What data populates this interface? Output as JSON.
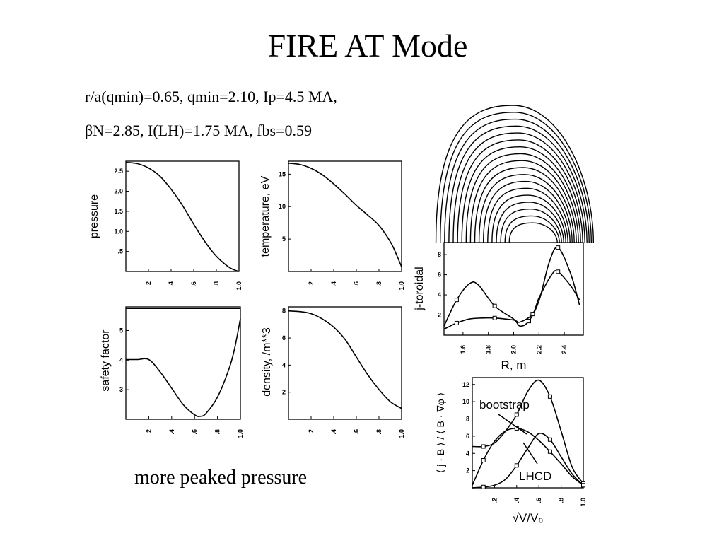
{
  "slide": {
    "title": "FIRE AT Mode",
    "params_line1": "r/a(qmin)=0.65, qmin=2.10, Ip=4.5 MA,",
    "params_line2": "βN=2.85, I(LH)=1.75 MA, fbs=0.59",
    "caption": "more peaked pressure"
  },
  "chart_data": [
    {
      "type": "line",
      "ylabel": "pressure",
      "x_ticks": [
        "2",
        ".4",
        ".6",
        ".8",
        "1.0"
      ],
      "y_ticks": [
        ".5",
        "1.0",
        "1.5",
        "2.0",
        "2.5"
      ],
      "xlim": [
        0,
        1
      ],
      "ylim": [
        0,
        2.75
      ],
      "series": [
        {
          "x": [
            0,
            0.1,
            0.2,
            0.3,
            0.4,
            0.5,
            0.6,
            0.7,
            0.8,
            0.9,
            0.95,
            1.0
          ],
          "y": [
            2.72,
            2.69,
            2.58,
            2.38,
            2.05,
            1.65,
            1.18,
            0.74,
            0.38,
            0.13,
            0.05,
            0.0
          ]
        }
      ]
    },
    {
      "type": "line",
      "ylabel": "temperature, eV",
      "x_ticks": [
        "2",
        ".4",
        ".6",
        ".8",
        "1.0"
      ],
      "y_ticks": [
        "5",
        "10",
        "15"
      ],
      "xlim": [
        0,
        1
      ],
      "ylim": [
        0,
        17
      ],
      "series": [
        {
          "x": [
            0,
            0.1,
            0.2,
            0.3,
            0.4,
            0.5,
            0.6,
            0.7,
            0.8,
            0.9,
            0.95,
            1.0
          ],
          "y": [
            16.7,
            16.5,
            15.9,
            14.9,
            13.5,
            11.9,
            10.2,
            8.7,
            7.1,
            4.6,
            2.8,
            0.7
          ]
        }
      ]
    },
    {
      "type": "line",
      "ylabel": "safety factor",
      "x_ticks": [
        "2",
        ".4",
        ".6",
        ".8",
        "1.0"
      ],
      "y_ticks": [
        "3",
        "4",
        "5"
      ],
      "xlim": [
        0,
        1
      ],
      "ylim": [
        2,
        5.8
      ],
      "series": [
        {
          "x": [
            0,
            0.1,
            0.2,
            0.3,
            0.4,
            0.5,
            0.6,
            0.65,
            0.7,
            0.8,
            0.9,
            0.95,
            1.0
          ],
          "y": [
            4.02,
            4.02,
            4.02,
            3.6,
            3.05,
            2.5,
            2.15,
            2.1,
            2.2,
            2.75,
            3.7,
            4.4,
            5.4
          ]
        }
      ]
    },
    {
      "type": "line",
      "ylabel": "density, /m**3",
      "x_ticks": [
        "2",
        ".4",
        ".6",
        ".8",
        "1.0"
      ],
      "y_ticks": [
        "2",
        "4",
        "6",
        "8"
      ],
      "xlim": [
        0,
        1
      ],
      "ylim": [
        0,
        8.3
      ],
      "series": [
        {
          "x": [
            0,
            0.1,
            0.2,
            0.3,
            0.4,
            0.5,
            0.6,
            0.7,
            0.8,
            0.9,
            1.0
          ],
          "y": [
            8.0,
            7.95,
            7.8,
            7.4,
            6.8,
            5.9,
            4.6,
            3.3,
            2.2,
            1.3,
            0.8
          ]
        }
      ]
    },
    {
      "type": "line",
      "xlabel": "R, m",
      "ylabel": "j-toroidal",
      "x_ticks": [
        "1.6",
        "1.8",
        "2.0",
        "2.2",
        "2.4"
      ],
      "y_ticks": [
        "2",
        "4",
        "6",
        "8"
      ],
      "xlim": [
        1.45,
        2.55
      ],
      "ylim": [
        0,
        9.2
      ],
      "series": [
        {
          "x": [
            1.45,
            1.55,
            1.65,
            1.72,
            1.85,
            2.0,
            2.05,
            2.12,
            2.2,
            2.28,
            2.35,
            2.45,
            2.52
          ],
          "y": [
            0.9,
            3.5,
            5.1,
            5.0,
            2.9,
            1.6,
            0.9,
            1.4,
            3.4,
            7.2,
            8.7,
            6.1,
            3.0
          ]
        },
        {
          "x": [
            1.45,
            1.55,
            1.65,
            1.75,
            1.85,
            2.0,
            2.05,
            2.15,
            2.2,
            2.3,
            2.35,
            2.45,
            2.52
          ],
          "y": [
            0.6,
            1.2,
            1.6,
            1.7,
            1.7,
            1.5,
            1.3,
            2.1,
            3.7,
            6.0,
            6.3,
            4.9,
            3.5
          ]
        }
      ]
    },
    {
      "type": "line",
      "xlabel": "√V/V₀",
      "ylabel": "⟨ j · B ⟩ / ⟨ B · ∇φ ⟩",
      "annotations": [
        "bootstrap",
        "LHCD"
      ],
      "x_ticks": [
        ".2",
        ".4",
        ".6",
        ".8",
        "1.0"
      ],
      "y_ticks": [
        "2",
        "4",
        "6",
        "8",
        "10",
        "12"
      ],
      "xlim": [
        0,
        1
      ],
      "ylim": [
        0,
        12.8
      ],
      "series": [
        {
          "x": [
            0,
            0.1,
            0.2,
            0.3,
            0.4,
            0.5,
            0.6,
            0.7,
            0.8,
            0.9,
            1.0
          ],
          "y": [
            4.8,
            4.8,
            5.2,
            6.6,
            8.5,
            11.2,
            12.5,
            10.6,
            6.6,
            2.4,
            0.5
          ]
        },
        {
          "x": [
            0,
            0.1,
            0.2,
            0.3,
            0.4,
            0.5,
            0.6,
            0.7,
            0.8,
            0.9,
            1.0
          ],
          "y": [
            0.3,
            3.2,
            5.4,
            6.6,
            6.9,
            6.5,
            5.5,
            4.2,
            2.8,
            1.3,
            0.3
          ]
        },
        {
          "x": [
            0,
            0.1,
            0.2,
            0.3,
            0.4,
            0.5,
            0.6,
            0.7,
            0.8,
            0.9,
            1.0
          ],
          "y": [
            0,
            0.1,
            0.3,
            1.0,
            2.6,
            4.6,
            6.3,
            5.6,
            3.6,
            1.6,
            0.3
          ]
        }
      ]
    },
    {
      "type": "diagram",
      "name": "flux surfaces",
      "surfaces": 18
    }
  ]
}
